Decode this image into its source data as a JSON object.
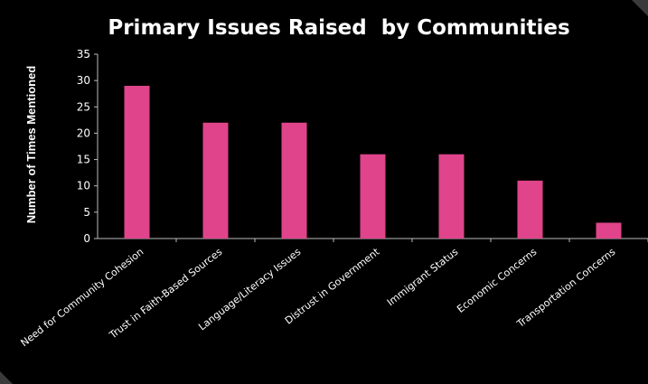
{
  "chart_data": {
    "type": "bar",
    "title": "Primary Issues Raised  by Communities",
    "xlabel": "",
    "ylabel": "Number of Times Mentioned",
    "categories": [
      "Need for Community Cohesion",
      "Trust in Faith-Based Sources",
      "Language/Literacy Issues",
      "Distrust in Government",
      "Immigrant Status",
      "Economic Concerns",
      "Transportation Concerns"
    ],
    "values": [
      29,
      22,
      22,
      16,
      16,
      11,
      3
    ],
    "ylim": [
      0,
      35
    ],
    "yticks": [
      0,
      5,
      10,
      15,
      20,
      25,
      30,
      35
    ],
    "grid": false,
    "legend": "none",
    "bar_color": "#e0448a",
    "background_color": "#000000",
    "text_color": "#ffffff"
  }
}
